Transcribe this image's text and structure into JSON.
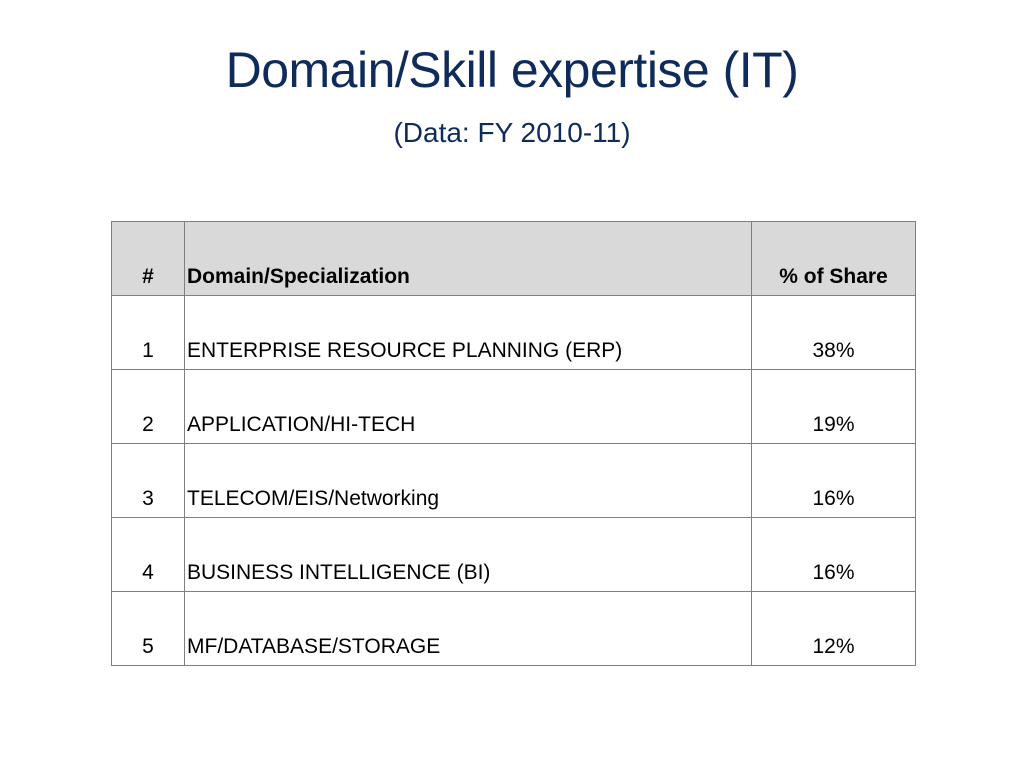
{
  "slide": {
    "title": "Domain/Skill expertise (IT)",
    "subtitle": "(Data: FY 2010-11)",
    "title_color": "#0f2b5b"
  },
  "table": {
    "header_fill": "#d9d9d9",
    "headers": {
      "num": "#",
      "domain": "Domain/Specialization",
      "share": "% of Share"
    },
    "rows": [
      {
        "num": "1",
        "domain": "ENTERPRISE RESOURCE PLANNING (ERP)",
        "share": "38%"
      },
      {
        "num": "2",
        "domain": "APPLICATION/HI-TECH",
        "share": "19%"
      },
      {
        "num": "3",
        "domain": "TELECOM/EIS/Networking",
        "share": "16%"
      },
      {
        "num": "4",
        "domain": "BUSINESS INTELLIGENCE (BI)",
        "share": "16%"
      },
      {
        "num": "5",
        "domain": "MF/DATABASE/STORAGE",
        "share": "12%"
      }
    ]
  }
}
